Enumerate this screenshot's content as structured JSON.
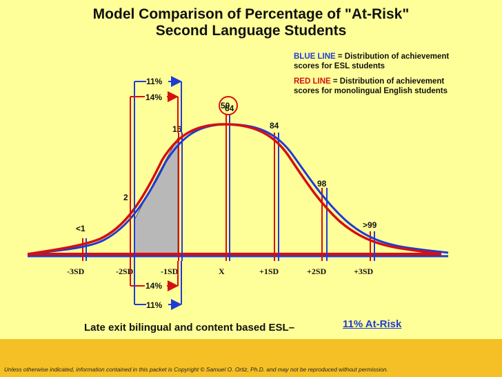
{
  "title_line1": "Model Comparison of Percentage of \"At-Risk\"",
  "title_line2": "Second Language Students",
  "legend": {
    "blue_label": "BLUE LINE",
    "blue_text_1": " = Distribution of achievement",
    "blue_text_2": "scores for ESL students",
    "red_label": "RED LINE",
    "red_text_1": " = Distribution of achievement",
    "red_text_2": "scores for monolingual English students",
    "blue_color": "#1f3bd6",
    "red_color": "#d41010"
  },
  "percentiles": {
    "lt1": "<1",
    "p2": "2",
    "p16": "16",
    "p50_red": "50",
    "p50_blue": "64",
    "p84": "84",
    "p98": "98",
    "gt99": ">99"
  },
  "sd_labels": [
    "-3SD",
    "-2SD",
    "-1SD",
    "X",
    "+1SD",
    "+2SD",
    "+3SD"
  ],
  "brackets": {
    "top_blue": "11%",
    "top_red": "14%",
    "bottom_red": "14%",
    "bottom_blue": "11%"
  },
  "caption": {
    "main": "Late exit bilingual and content based ESL",
    "dash": "–",
    "link": "11% At-Risk"
  },
  "footer": "Unless otherwise indicated, information contained in this packet is Copyright © Samuel O. Ortiz, Ph.D. and may not be reproduced without permission."
}
